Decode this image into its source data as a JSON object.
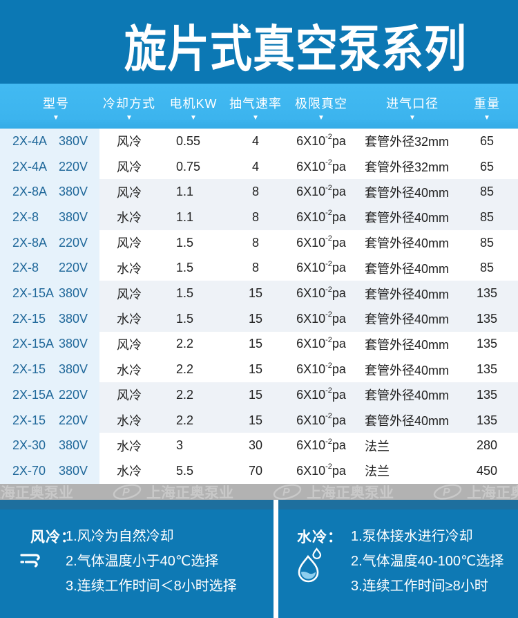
{
  "title": "旋片式真空泵系列",
  "table": {
    "sort_icon": "▼",
    "headers": [
      {
        "key": "model",
        "label": "型号"
      },
      {
        "key": "cooling-method",
        "label": "冷却方式"
      },
      {
        "key": "motor-kw",
        "label": "电机KW"
      },
      {
        "key": "pumping-speed",
        "label": "抽气速率"
      },
      {
        "key": "ultimate-vacuum",
        "label": "极限真空"
      },
      {
        "key": "inlet-diameter",
        "label": "进气口径"
      },
      {
        "key": "weight",
        "label": "重量"
      }
    ],
    "rows": [
      {
        "model": "2X-4A",
        "voltage": "380V",
        "cooling": "风冷",
        "kw": "0.55",
        "speed": "4",
        "vacuum_base": "6X10",
        "vacuum_sup": "-2",
        "vacuum_unit": "pa",
        "inlet": "套管外径32mm",
        "weight": "65"
      },
      {
        "model": "2X-4A",
        "voltage": "220V",
        "cooling": "风冷",
        "kw": "0.75",
        "speed": "4",
        "vacuum_base": "6X10",
        "vacuum_sup": "-2",
        "vacuum_unit": "pa",
        "inlet": "套管外径32mm",
        "weight": "65"
      },
      {
        "model": "2X-8A",
        "voltage": "380V",
        "cooling": "风冷",
        "kw": "1.1",
        "speed": "8",
        "vacuum_base": "6X10",
        "vacuum_sup": "-2",
        "vacuum_unit": "pa",
        "inlet": "套管外径40mm",
        "weight": "85"
      },
      {
        "model": "2X-8",
        "voltage": "380V",
        "cooling": "水冷",
        "kw": "1.1",
        "speed": "8",
        "vacuum_base": "6X10",
        "vacuum_sup": "-2",
        "vacuum_unit": "pa",
        "inlet": "套管外径40mm",
        "weight": "85"
      },
      {
        "model": "2X-8A",
        "voltage": "220V",
        "cooling": "风冷",
        "kw": "1.5",
        "speed": "8",
        "vacuum_base": "6X10",
        "vacuum_sup": "-2",
        "vacuum_unit": "pa",
        "inlet": "套管外径40mm",
        "weight": "85"
      },
      {
        "model": "2X-8",
        "voltage": "220V",
        "cooling": "水冷",
        "kw": "1.5",
        "speed": "8",
        "vacuum_base": "6X10",
        "vacuum_sup": "-2",
        "vacuum_unit": "pa",
        "inlet": "套管外径40mm",
        "weight": "85"
      },
      {
        "model": "2X-15A",
        "voltage": "380V",
        "cooling": "风冷",
        "kw": "1.5",
        "speed": "15",
        "vacuum_base": "6X10",
        "vacuum_sup": "-2",
        "vacuum_unit": "pa",
        "inlet": "套管外径40mm",
        "weight": "135"
      },
      {
        "model": "2X-15",
        "voltage": "380V",
        "cooling": "水冷",
        "kw": "1.5",
        "speed": "15",
        "vacuum_base": "6X10",
        "vacuum_sup": "-2",
        "vacuum_unit": "pa",
        "inlet": "套管外径40mm",
        "weight": "135"
      },
      {
        "model": "2X-15A",
        "voltage": "380V",
        "cooling": "风冷",
        "kw": "2.2",
        "speed": "15",
        "vacuum_base": "6X10",
        "vacuum_sup": "-2",
        "vacuum_unit": "pa",
        "inlet": "套管外径40mm",
        "weight": "135"
      },
      {
        "model": "2X-15",
        "voltage": "380V",
        "cooling": "水冷",
        "kw": "2.2",
        "speed": "15",
        "vacuum_base": "6X10",
        "vacuum_sup": "-2",
        "vacuum_unit": "pa",
        "inlet": "套管外径40mm",
        "weight": "135"
      },
      {
        "model": "2X-15A",
        "voltage": "220V",
        "cooling": "风冷",
        "kw": "2.2",
        "speed": "15",
        "vacuum_base": "6X10",
        "vacuum_sup": "-2",
        "vacuum_unit": "pa",
        "inlet": "套管外径40mm",
        "weight": "135"
      },
      {
        "model": "2X-15",
        "voltage": "220V",
        "cooling": "水冷",
        "kw": "2.2",
        "speed": "15",
        "vacuum_base": "6X10",
        "vacuum_sup": "-2",
        "vacuum_unit": "pa",
        "inlet": "套管外径40mm",
        "weight": "135"
      },
      {
        "model": "2X-30",
        "voltage": "380V",
        "cooling": "水冷",
        "kw": "3",
        "speed": "30",
        "vacuum_base": "6X10",
        "vacuum_sup": "-2",
        "vacuum_unit": "pa",
        "inlet": "法兰",
        "weight": "280"
      },
      {
        "model": "2X-70",
        "voltage": "380V",
        "cooling": "水冷",
        "kw": "5.5",
        "speed": "70",
        "vacuum_base": "6X10",
        "vacuum_sup": "-2",
        "vacuum_unit": "pa",
        "inlet": "法兰",
        "weight": "450"
      }
    ]
  },
  "watermark": {
    "brand": "上海正奥泵业",
    "logo_letter": "P",
    "repeat": 4
  },
  "notes": {
    "air": {
      "label": "风冷：",
      "icon": "wind-icon",
      "items": [
        "1.风冷为自然冷却",
        "2.气体温度小于40℃选择",
        "3.连续工作时间＜8小时选择"
      ]
    },
    "water": {
      "label": "水冷：",
      "icon": "water-drop-icon",
      "items": [
        "1.泵体接水进行冷却",
        "2.气体温度40-100℃选择",
        "3.连续工作时间≥8小时"
      ]
    }
  },
  "colors": {
    "title_band": "#0c78b4",
    "header_band": "#3eb7f0",
    "row_alt": "#eef2f7",
    "model_col": "#e6f2fb",
    "model_text": "#20689a",
    "watermark_bg": "#b2b2b2",
    "watermark_text": "#c9c9c9",
    "strip": "#1e6f9e",
    "panel": "#0e79b4"
  }
}
